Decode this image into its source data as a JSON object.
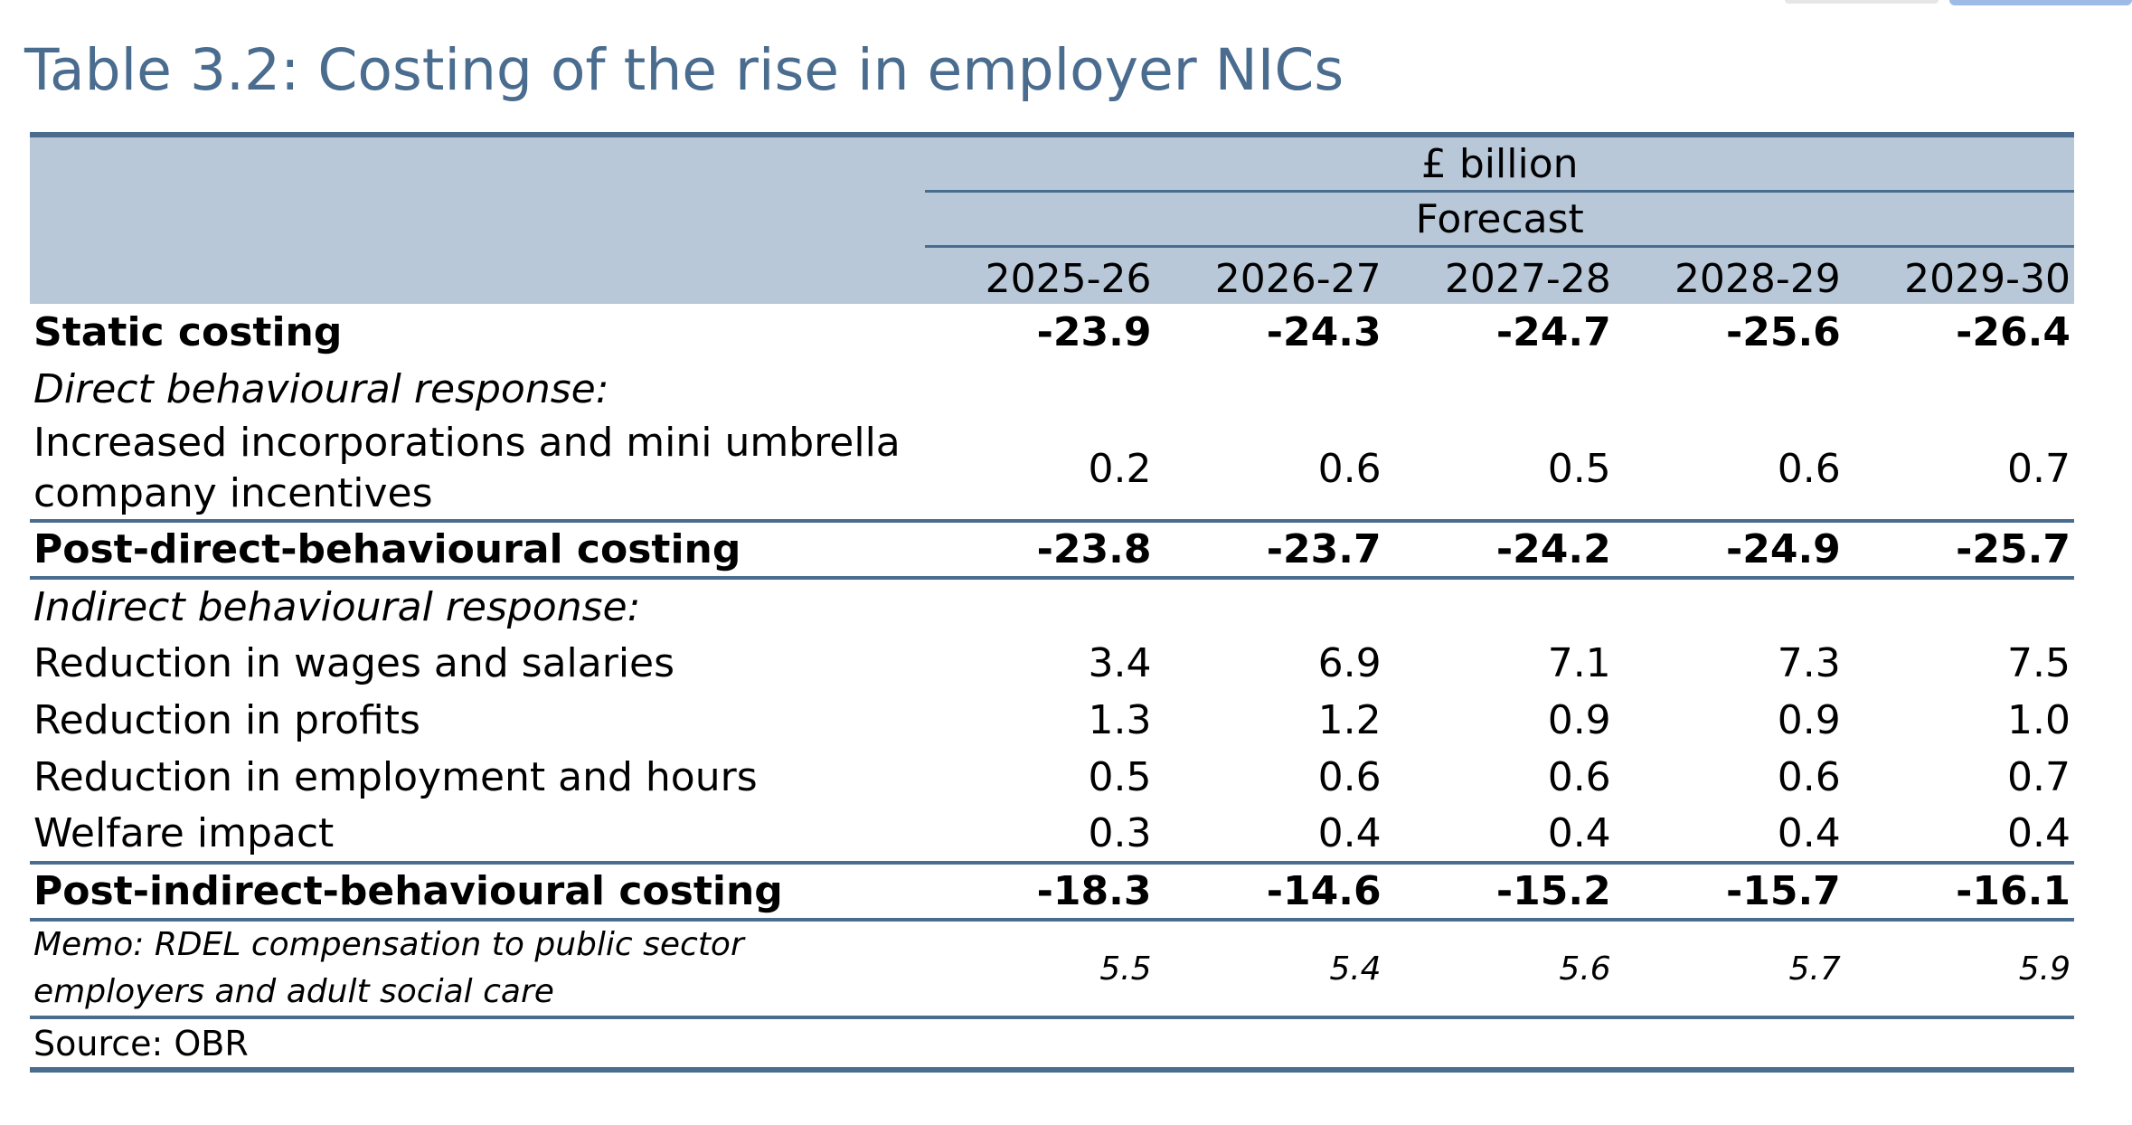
{
  "title": "Table 3.2: Costing of the rise in employer NICs",
  "header": {
    "unit": "£ billion",
    "band": "Forecast",
    "years": [
      "2025-26",
      "2026-27",
      "2027-28",
      "2028-29",
      "2029-30"
    ]
  },
  "rows": {
    "static": {
      "label": "Static costing",
      "values": [
        "-23.9",
        "-24.3",
        "-24.7",
        "-25.6",
        "-26.4"
      ]
    },
    "direct_heading": {
      "label": "Direct behavioural response:"
    },
    "incorporations": {
      "label": "Increased incorporations and mini umbrella company incentives",
      "values": [
        "0.2",
        "0.6",
        "0.5",
        "0.6",
        "0.7"
      ]
    },
    "post_direct": {
      "label": "Post-direct-behavioural costing",
      "values": [
        "-23.8",
        "-23.7",
        "-24.2",
        "-24.9",
        "-25.7"
      ]
    },
    "indirect_heading": {
      "label": "Indirect behavioural response:"
    },
    "wages": {
      "label": "Reduction in wages and salaries",
      "values": [
        "3.4",
        "6.9",
        "7.1",
        "7.3",
        "7.5"
      ]
    },
    "profits": {
      "label": "Reduction in profits",
      "values": [
        "1.3",
        "1.2",
        "0.9",
        "0.9",
        "1.0"
      ]
    },
    "employment": {
      "label": "Reduction in employment and hours",
      "values": [
        "0.5",
        "0.6",
        "0.6",
        "0.6",
        "0.7"
      ]
    },
    "welfare": {
      "label": "Welfare impact",
      "values": [
        "0.3",
        "0.4",
        "0.4",
        "0.4",
        "0.4"
      ]
    },
    "post_indirect": {
      "label": "Post-indirect-behavioural costing",
      "values": [
        "-18.3",
        "-14.6",
        "-15.2",
        "-15.7",
        "-16.1"
      ]
    },
    "memo": {
      "label": "Memo: RDEL compensation to public sector employers and adult social care",
      "values": [
        "5.5",
        "5.4",
        "5.6",
        "5.7",
        "5.9"
      ]
    }
  },
  "source": "Source: OBR",
  "colors": {
    "title": "#4a6c8f",
    "header_fill": "#b8c8d8",
    "rule": "#4a6c8f"
  }
}
